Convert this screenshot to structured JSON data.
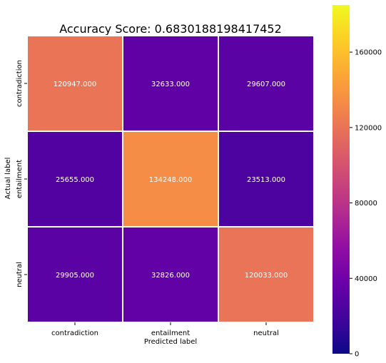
{
  "chart_data": {
    "type": "heatmap",
    "title": "Accuracy Score: 0.6830188198417452",
    "xlabel": "Predicted label",
    "ylabel": "Actual label",
    "x_categories": [
      "contradiction",
      "entailment",
      "neutral"
    ],
    "y_categories": [
      "contradiction",
      "entailment",
      "neutral"
    ],
    "values": [
      [
        120947,
        32633,
        29607
      ],
      [
        25655,
        134248,
        23513
      ],
      [
        29905,
        32826,
        120033
      ]
    ],
    "cell_labels": [
      [
        "120947.000",
        "32633.000",
        "29607.000"
      ],
      [
        "25655.000",
        "134248.000",
        "23513.000"
      ],
      [
        "29905.000",
        "32826.000",
        "120033.000"
      ]
    ],
    "colormap": "plasma",
    "colorbar": {
      "vmin": 0,
      "vmax": 185000,
      "ticks": [
        0,
        40000,
        80000,
        120000,
        160000
      ],
      "tick_labels": [
        "0",
        "40000",
        "80000",
        "120000",
        "160000"
      ]
    },
    "grid_line_color": "#ffffff"
  }
}
